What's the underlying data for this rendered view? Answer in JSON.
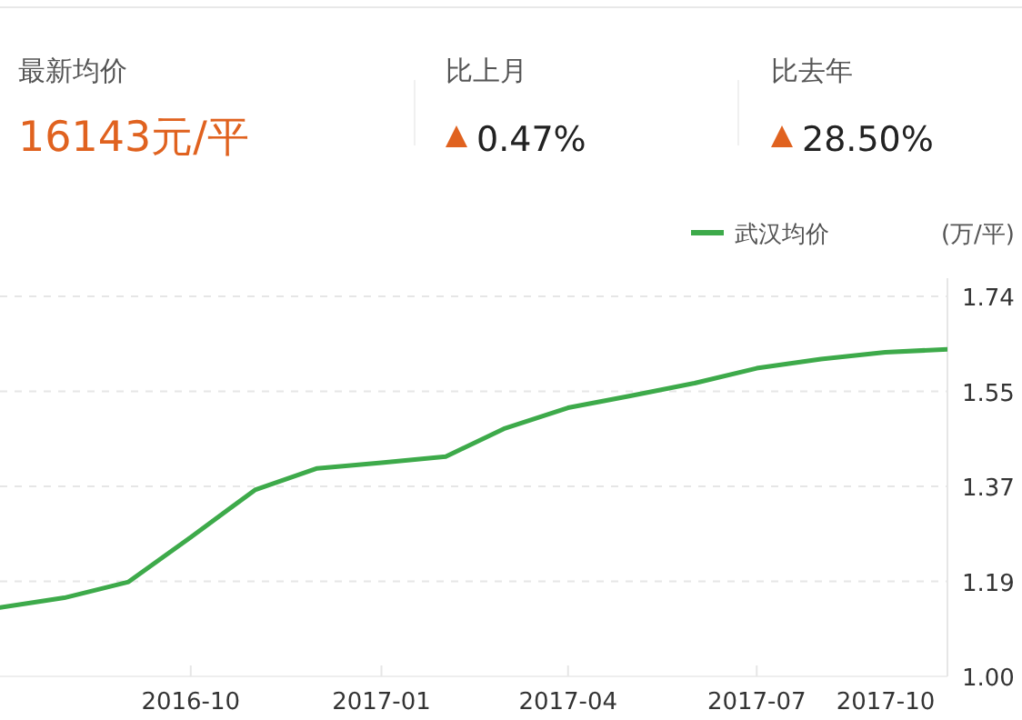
{
  "chart_data": {
    "type": "line",
    "title": "最新均价",
    "annotations": [
      "16143元/平",
      "比上月",
      "0.47%",
      "比去年",
      "28.50%"
    ],
    "ylabel": "(万/平)",
    "x": [
      "2016-07",
      "2016-08",
      "2016-09",
      "2016-10",
      "2016-11",
      "2016-12",
      "2017-01",
      "2017-02",
      "2017-03",
      "2017-04",
      "2017-05",
      "2017-06",
      "2017-07",
      "2017-08",
      "2017-09",
      "2017-10"
    ],
    "series": [
      {
        "name": "武汉均价",
        "color": "#3daa4a",
        "values": [
          1.134,
          1.153,
          1.184,
          1.271,
          1.363,
          1.405,
          1.416,
          1.428,
          1.482,
          1.523,
          1.546,
          1.571,
          1.6,
          1.618,
          1.631,
          1.637
        ]
      }
    ],
    "xlim": [
      "2016-07-01",
      "2017-10-01"
    ],
    "xticks": [
      "2016-10",
      "2017-01",
      "2017-04",
      "2017-07",
      "2017-10"
    ],
    "ylim": [
      1.0,
      1.74
    ],
    "yticks": [
      {
        "value": 1.0,
        "label": "1.00"
      },
      {
        "value": 1.185,
        "label": "1.19"
      },
      {
        "value": 1.37,
        "label": "1.37"
      },
      {
        "value": 1.555,
        "label": "1.55"
      },
      {
        "value": 1.74,
        "label": "1.74"
      }
    ],
    "grid": "y",
    "legend": "top right",
    "marker": "none",
    "line_style": "solid"
  }
}
